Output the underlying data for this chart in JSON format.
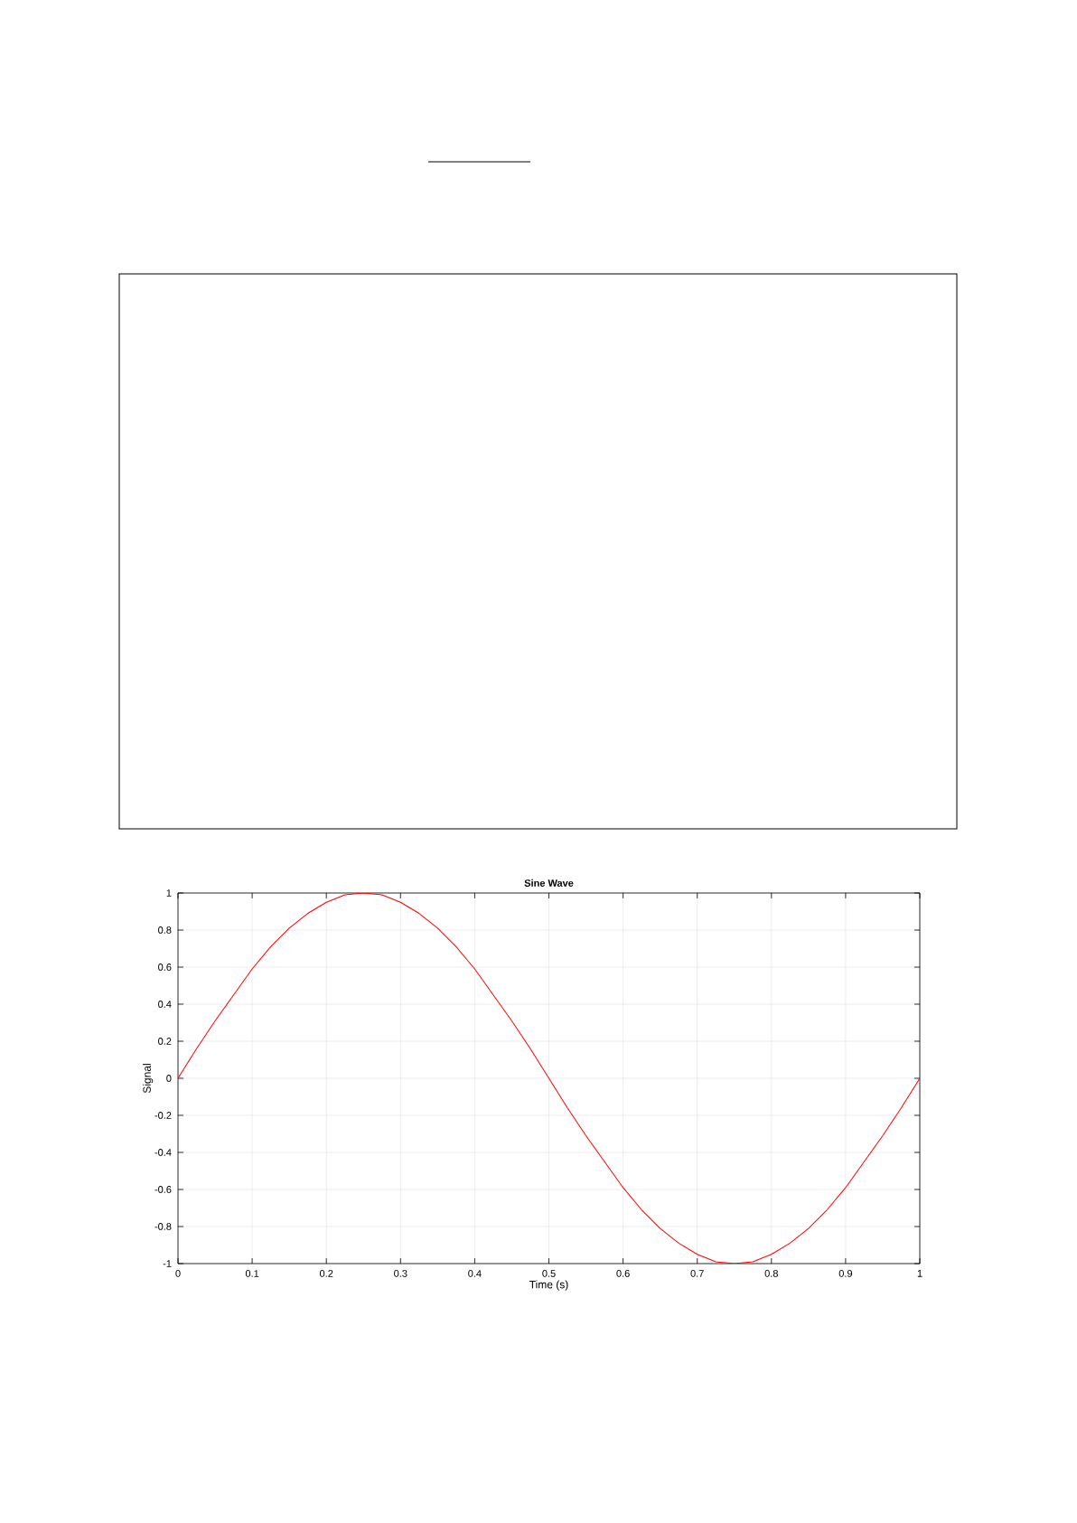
{
  "chart_data": {
    "type": "line",
    "title": "Sine Wave",
    "xlabel": "Time (s)",
    "ylabel": "Signal",
    "x": [
      0,
      0.025,
      0.05,
      0.075,
      0.1,
      0.125,
      0.15,
      0.175,
      0.2,
      0.225,
      0.25,
      0.275,
      0.3,
      0.325,
      0.35,
      0.375,
      0.4,
      0.425,
      0.45,
      0.475,
      0.5,
      0.525,
      0.55,
      0.575,
      0.6,
      0.625,
      0.65,
      0.675,
      0.7,
      0.725,
      0.75,
      0.775,
      0.8,
      0.825,
      0.85,
      0.875,
      0.9,
      0.925,
      0.95,
      0.975,
      1
    ],
    "series": [
      {
        "color": "#ff0000",
        "values": [
          0,
          0.16,
          0.31,
          0.45,
          0.59,
          0.71,
          0.81,
          0.89,
          0.95,
          0.99,
          1,
          0.99,
          0.95,
          0.89,
          0.81,
          0.71,
          0.59,
          0.45,
          0.31,
          0.16,
          0,
          -0.16,
          -0.31,
          -0.45,
          -0.59,
          -0.71,
          -0.81,
          -0.89,
          -0.95,
          -0.99,
          -1,
          -0.99,
          -0.95,
          -0.89,
          -0.81,
          -0.71,
          -0.59,
          -0.45,
          -0.31,
          -0.16,
          0
        ]
      }
    ],
    "xlim": [
      0,
      1
    ],
    "ylim": [
      -1,
      1
    ],
    "xticks": [
      0,
      0.1,
      0.2,
      0.3,
      0.4,
      0.5,
      0.6,
      0.7,
      0.8,
      0.9,
      1
    ],
    "yticks": [
      -1,
      -0.8,
      -0.6,
      -0.4,
      -0.2,
      0,
      0.2,
      0.4,
      0.6,
      0.8,
      1
    ],
    "grid": true,
    "marker": "none",
    "line_style": "solid"
  }
}
